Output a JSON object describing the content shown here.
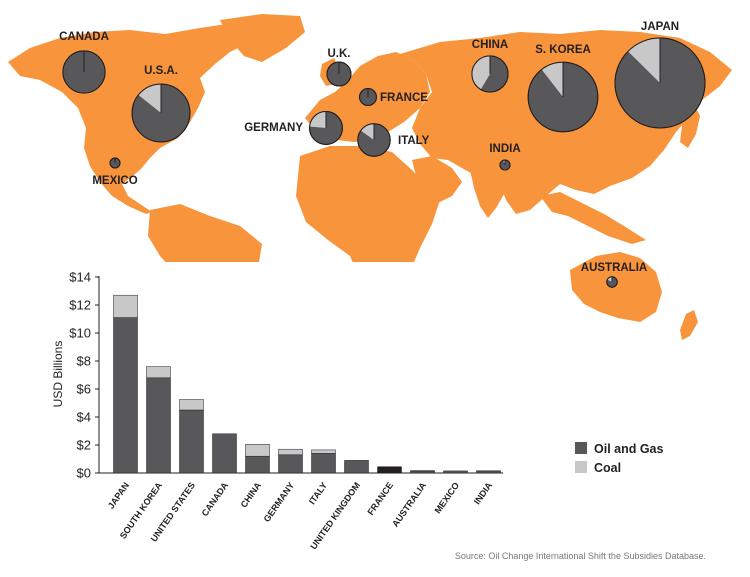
{
  "colors": {
    "land": "#f7943c",
    "oil_gas": "#58585a",
    "coal": "#c8c8c8",
    "bubble_outline": "#231f20",
    "france_bar": "#231f20"
  },
  "chart_data": [
    {
      "type": "pie",
      "description_note": "",
      "countries": [
        {
          "name": "JAPAN",
          "oil_gas": 11.1,
          "coal": 1.6
        },
        {
          "name": "S. KOREA",
          "oil_gas": 6.8,
          "coal": 0.8
        },
        {
          "name": "U.S.A.",
          "oil_gas": 4.5,
          "coal": 0.75
        },
        {
          "name": "CANADA",
          "oil_gas": 2.8,
          "coal": 0.0
        },
        {
          "name": "CHINA",
          "oil_gas": 1.2,
          "coal": 0.85
        },
        {
          "name": "GERMANY",
          "oil_gas": 1.3,
          "coal": 0.4
        },
        {
          "name": "ITALY",
          "oil_gas": 1.4,
          "coal": 0.25
        },
        {
          "name": "U.K.",
          "oil_gas": 0.9,
          "coal": 0.0
        },
        {
          "name": "FRANCE",
          "oil_gas": 0.45,
          "coal": 0.0
        },
        {
          "name": "AUSTRALIA",
          "oil_gas": 0.14,
          "coal": 0.03
        },
        {
          "name": "MEXICO",
          "oil_gas": 0.15,
          "coal": 0.0
        },
        {
          "name": "INDIA",
          "oil_gas": 0.15,
          "coal": 0.01
        }
      ]
    },
    {
      "type": "bar",
      "stacked": true,
      "categories": [
        "JAPAN",
        "SOUTH KOREA",
        "UNITED STATES",
        "CANADA",
        "CHINA",
        "GERMANY",
        "ITALY",
        "UNITED KINGDOM",
        "FRANCE",
        "AUSTRALIA",
        "MEXICO",
        "INDIA"
      ],
      "series": [
        {
          "name": "Oil and Gas",
          "values": [
            11.1,
            6.8,
            4.5,
            2.8,
            1.2,
            1.3,
            1.4,
            0.9,
            0.45,
            0.14,
            0.15,
            0.15
          ]
        },
        {
          "name": "Coal",
          "values": [
            1.6,
            0.8,
            0.75,
            0.0,
            0.85,
            0.4,
            0.25,
            0.0,
            0.0,
            0.03,
            0.0,
            0.01
          ]
        }
      ],
      "ylabel": "USD Billions",
      "ylim": [
        0,
        14
      ],
      "yticks": [
        "$0",
        "$2",
        "$4",
        "$6",
        "$8",
        "$10",
        "$12",
        "$14"
      ],
      "legend": {
        "position": "bottom-right"
      },
      "grid": false
    }
  ],
  "source": "Source: Oil Change International Shift the Subsidies Database."
}
